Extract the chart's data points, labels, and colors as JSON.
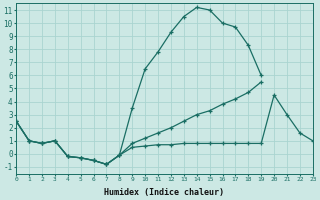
{
  "xlabel": "Humidex (Indice chaleur)",
  "background_color": "#cce8e4",
  "grid_color": "#aad4d0",
  "line_color": "#1a6e64",
  "xlim": [
    0,
    23
  ],
  "ylim": [
    -1.5,
    11.5
  ],
  "xticks": [
    0,
    1,
    2,
    3,
    4,
    5,
    6,
    7,
    8,
    9,
    10,
    11,
    12,
    13,
    14,
    15,
    16,
    17,
    18,
    19,
    20,
    21,
    22,
    23
  ],
  "yticks": [
    -1,
    0,
    1,
    2,
    3,
    4,
    5,
    6,
    7,
    8,
    9,
    10,
    11
  ],
  "series": [
    {
      "x": [
        0,
        1,
        2,
        3,
        4,
        5,
        6,
        7,
        8,
        9,
        10,
        11,
        12,
        13,
        14,
        15,
        16,
        17,
        18,
        19,
        20,
        21,
        22,
        23
      ],
      "y": [
        2.5,
        1.0,
        0.8,
        1.0,
        -0.2,
        -0.3,
        -0.5,
        -0.8,
        -0.1,
        3.5,
        6.5,
        7.8,
        9.3,
        10.5,
        11.2,
        11.0,
        10.0,
        9.7,
        8.3,
        6.0,
        null,
        null,
        null,
        null
      ]
    },
    {
      "x": [
        0,
        1,
        2,
        3,
        4,
        5,
        6,
        7,
        8,
        9,
        10,
        11,
        12,
        13,
        14,
        15,
        16,
        17,
        18,
        19,
        20,
        21,
        22,
        23
      ],
      "y": [
        2.5,
        1.0,
        0.8,
        1.0,
        -0.2,
        -0.3,
        -0.5,
        -0.8,
        -0.1,
        0.8,
        1.2,
        1.6,
        2.0,
        2.5,
        3.0,
        3.3,
        3.8,
        4.2,
        4.7,
        5.5,
        null,
        null,
        null,
        null
      ]
    },
    {
      "x": [
        0,
        1,
        2,
        3,
        4,
        5,
        6,
        7,
        8,
        9,
        10,
        11,
        12,
        13,
        14,
        15,
        16,
        17,
        18,
        19,
        20,
        21,
        22,
        23
      ],
      "y": [
        2.5,
        1.0,
        0.8,
        1.0,
        -0.2,
        -0.3,
        -0.5,
        -0.8,
        -0.1,
        0.5,
        0.6,
        0.7,
        0.7,
        0.8,
        0.8,
        0.8,
        0.8,
        0.8,
        0.8,
        0.8,
        4.5,
        3.0,
        1.6,
        1.0
      ]
    }
  ]
}
